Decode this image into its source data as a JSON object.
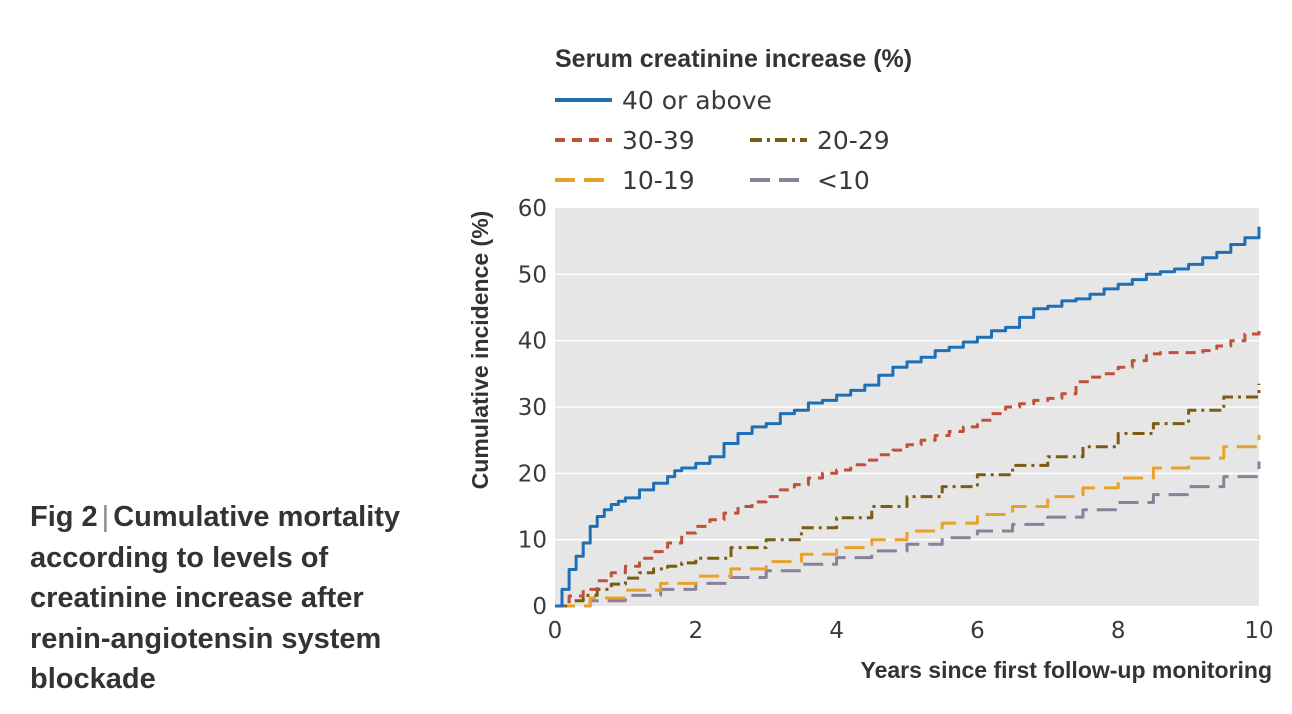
{
  "caption": {
    "fig_label": "Fig 2",
    "separator": "|",
    "text": "Cumulative mortality according to levels of creatinine increase after renin-angiotensin system blockade"
  },
  "chart_data": {
    "type": "line",
    "legend_title": "Serum creatinine increase (%)",
    "legend_placement": "top",
    "xlabel": "Years since first follow-up monitoring",
    "ylabel": "Cumulative incidence (%)",
    "xlim": [
      0,
      10
    ],
    "ylim": [
      0,
      60
    ],
    "xticks": [
      0,
      2,
      4,
      6,
      8,
      10
    ],
    "yticks": [
      0,
      10,
      20,
      30,
      40,
      50,
      60
    ],
    "grid": "horizontal",
    "background": "#e6e6e6",
    "series": [
      {
        "name": "40 or above",
        "color": "#1f6fb5",
        "style": "solid",
        "x": [
          0,
          0.1,
          0.2,
          0.3,
          0.4,
          0.5,
          0.6,
          0.7,
          0.8,
          0.9,
          1.0,
          1.2,
          1.4,
          1.6,
          1.7,
          1.8,
          2.0,
          2.2,
          2.4,
          2.6,
          2.8,
          3.0,
          3.2,
          3.4,
          3.6,
          3.8,
          4.0,
          4.2,
          4.4,
          4.6,
          4.8,
          5.0,
          5.2,
          5.4,
          5.6,
          5.8,
          6.0,
          6.2,
          6.4,
          6.6,
          6.8,
          7.0,
          7.2,
          7.4,
          7.6,
          7.8,
          8.0,
          8.2,
          8.4,
          8.6,
          8.8,
          9.0,
          9.2,
          9.4,
          9.6,
          9.8,
          10.0
        ],
        "values": [
          0,
          2.5,
          5.5,
          7.5,
          9.5,
          12,
          13.5,
          14.5,
          15.3,
          15.8,
          16.3,
          17.5,
          18.5,
          19.5,
          20.4,
          20.8,
          21.5,
          22.5,
          24.5,
          26.0,
          27.0,
          27.5,
          29.0,
          29.5,
          30.6,
          31.0,
          31.8,
          32.5,
          33.3,
          34.8,
          36.0,
          36.8,
          37.5,
          38.5,
          39.0,
          39.8,
          40.5,
          41.5,
          42.0,
          43.5,
          44.8,
          45.2,
          46.0,
          46.3,
          47.0,
          47.8,
          48.5,
          49.2,
          50.0,
          50.4,
          50.8,
          51.5,
          52.5,
          53.3,
          54.5,
          55.5,
          57.2
        ]
      },
      {
        "name": "30-39",
        "color": "#c1503b",
        "style": "dashed",
        "x": [
          0,
          0.2,
          0.4,
          0.6,
          0.8,
          1.0,
          1.2,
          1.4,
          1.6,
          1.8,
          2.0,
          2.2,
          2.4,
          2.6,
          2.8,
          3.0,
          3.2,
          3.4,
          3.6,
          3.8,
          4.0,
          4.2,
          4.4,
          4.6,
          4.8,
          5.0,
          5.2,
          5.4,
          5.6,
          5.8,
          6.0,
          6.2,
          6.4,
          6.6,
          6.8,
          7.0,
          7.2,
          7.4,
          7.6,
          7.8,
          8.0,
          8.2,
          8.4,
          8.6,
          8.8,
          9.0,
          9.2,
          9.4,
          9.6,
          9.8,
          10.0
        ],
        "values": [
          0,
          1.5,
          2.5,
          3.8,
          5.0,
          6.0,
          7.2,
          8.2,
          9.5,
          11.0,
          12.0,
          13.0,
          14.0,
          15.0,
          15.7,
          16.5,
          17.5,
          18.3,
          19.3,
          20.0,
          20.5,
          21.3,
          22.0,
          22.8,
          23.5,
          24.3,
          25.0,
          25.7,
          26.3,
          27.0,
          28.0,
          29.0,
          30.0,
          30.5,
          31.0,
          31.3,
          32.0,
          33.8,
          34.5,
          35.0,
          36.0,
          37.0,
          38.0,
          38.2,
          38.2,
          38.2,
          38.5,
          39.2,
          40.0,
          41.0,
          42.0
        ]
      },
      {
        "name": "20-29",
        "color": "#7c5c12",
        "style": "dashdot",
        "x": [
          0,
          0.2,
          0.4,
          0.6,
          0.8,
          1.0,
          1.2,
          1.4,
          1.6,
          1.8,
          2.0,
          2.5,
          3.0,
          3.5,
          4.0,
          4.5,
          5.0,
          5.5,
          6.0,
          6.5,
          7.0,
          7.5,
          8.0,
          8.5,
          9.0,
          9.5,
          10.0
        ],
        "values": [
          0,
          0.8,
          1.6,
          2.5,
          3.3,
          4.2,
          5.0,
          5.6,
          6.0,
          6.5,
          7.2,
          8.8,
          10.0,
          11.8,
          13.3,
          15.0,
          16.5,
          18.0,
          19.8,
          21.2,
          22.5,
          24.0,
          26.0,
          27.5,
          29.5,
          31.5,
          33.5
        ]
      },
      {
        "name": "10-19",
        "color": "#e9a228",
        "style": "longdash",
        "x": [
          0,
          0.5,
          1.0,
          1.5,
          2.0,
          2.5,
          3.0,
          3.5,
          4.0,
          4.5,
          5.0,
          5.5,
          6.0,
          6.5,
          7.0,
          7.5,
          8.0,
          8.5,
          9.0,
          9.5,
          10.0
        ],
        "values": [
          0,
          1.2,
          2.4,
          3.4,
          4.5,
          5.6,
          6.7,
          7.8,
          8.8,
          10.0,
          11.3,
          12.5,
          13.8,
          15.0,
          16.5,
          17.8,
          19.3,
          20.8,
          22.3,
          24.0,
          25.8
        ]
      },
      {
        "name": "<10",
        "color": "#8b8099",
        "style": "longdash",
        "x": [
          0,
          0.5,
          1.0,
          1.5,
          2.0,
          2.5,
          3.0,
          3.5,
          4.0,
          4.5,
          5.0,
          5.5,
          6.0,
          6.5,
          7.0,
          7.5,
          8.0,
          8.5,
          9.0,
          9.5,
          10.0
        ],
        "values": [
          0,
          0.8,
          1.6,
          2.5,
          3.4,
          4.3,
          5.3,
          6.3,
          7.3,
          8.3,
          9.3,
          10.3,
          11.3,
          12.3,
          13.4,
          14.5,
          15.6,
          16.8,
          18.0,
          19.5,
          21.8
        ]
      }
    ]
  }
}
